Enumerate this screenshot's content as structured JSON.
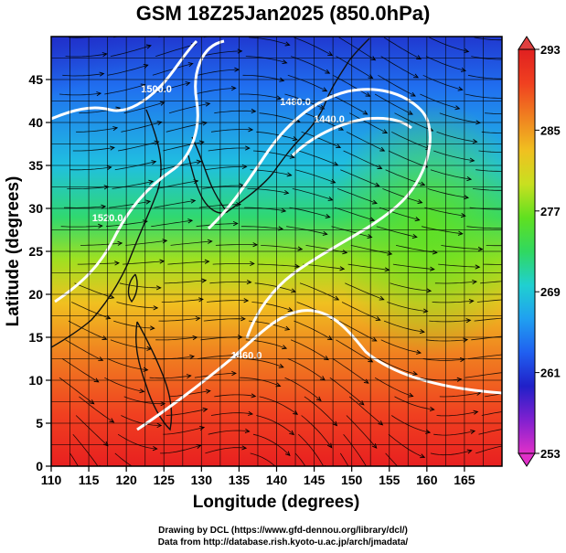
{
  "title": "GSM 18Z25Jan2025 (850.0hPa)",
  "axes": {
    "xlabel": "Longitude (degrees)",
    "ylabel": "Latitude  (degrees)",
    "xlim": [
      110,
      170
    ],
    "ylim": [
      0,
      50
    ],
    "xticks": [
      110,
      115,
      120,
      125,
      130,
      135,
      140,
      145,
      150,
      155,
      160,
      165
    ],
    "yticks": [
      0,
      5,
      10,
      15,
      20,
      25,
      30,
      35,
      40,
      45
    ],
    "grid": true
  },
  "colorbar": {
    "min": 253,
    "max": 293,
    "labels": [
      "293",
      "285",
      "277",
      "269",
      "261",
      "253"
    ],
    "label_values": [
      293,
      285,
      277,
      269,
      261,
      253
    ],
    "stops": [
      "#e030c8",
      "#8020d0",
      "#2020c8",
      "#2060f0",
      "#20a0f0",
      "#20d0d0",
      "#30d860",
      "#60e020",
      "#c8e020",
      "#f0c020",
      "#f08020",
      "#f04020",
      "#e02020"
    ]
  },
  "contours": [
    {
      "label": "1520.0",
      "lon": 117.5,
      "lat": 28.5
    },
    {
      "label": "1500.0",
      "lon": 124.0,
      "lat": 43.5
    },
    {
      "label": "1480.0",
      "lon": 142.5,
      "lat": 42.0
    },
    {
      "label": "1440.0",
      "lon": 147.0,
      "lat": 40.0
    },
    {
      "label": "1460.0",
      "lon": 136.0,
      "lat": 12.5
    }
  ],
  "credits": [
    "Drawing by DCL (https://www.gfd-dennou.org/library/dcl/)",
    "Data from http://database.rish.kyoto-u.ac.jp/arch/jmadata/"
  ]
}
